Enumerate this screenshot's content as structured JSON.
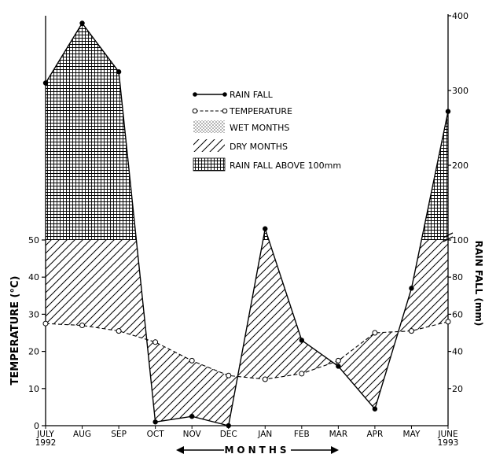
{
  "chart_data": {
    "type": "line",
    "categories": [
      "JULY\n1992",
      "AUG",
      "SEP",
      "OCT",
      "NOV",
      "DEC",
      "JAN",
      "FEB",
      "MAR",
      "APR",
      "MAY",
      "JUNE\n1993"
    ],
    "xlabel": "MONTHS",
    "ylabel_left": "TEMPERATURE (°C)",
    "ylabel_right": "RAIN FALL (mm)",
    "left_axis": {
      "ylim": [
        0,
        50
      ],
      "ticks": [
        0,
        10,
        20,
        30,
        40,
        50
      ]
    },
    "right_axis": {
      "lower_ylim": [
        0,
        100
      ],
      "lower_ticks": [
        {
          "value": 20,
          "label": "20"
        },
        {
          "value": 40,
          "label": "40"
        },
        {
          "value": 60,
          "label": "60"
        },
        {
          "value": 80,
          "label": "80"
        },
        {
          "value": 100,
          "label": "100"
        }
      ],
      "upper_ylim": [
        100,
        400
      ],
      "upper_ticks": [
        {
          "value": 200,
          "label": "200"
        },
        {
          "value": 300,
          "label": "300"
        },
        {
          "value": 400,
          "label": "400"
        }
      ],
      "axis_break_at": 100
    },
    "series": [
      {
        "name": "RAIN FALL",
        "axis": "right",
        "style": "solid",
        "marker": "filled-circle",
        "values": [
          310,
          390,
          325,
          2,
          5,
          0,
          115,
          46,
          32,
          9,
          74,
          272
        ]
      },
      {
        "name": "TEMPERATURE",
        "axis": "left",
        "style": "dashed",
        "marker": "open-circle",
        "values": [
          27.5,
          27,
          25.5,
          22.5,
          17.5,
          13.5,
          12.5,
          14,
          17.5,
          25,
          25.5,
          28
        ]
      }
    ],
    "legend": {
      "placement": "top-center",
      "items": [
        {
          "key": "rainfall",
          "label": "RAIN FALL"
        },
        {
          "key": "temperature",
          "label": "TEMPERATURE"
        },
        {
          "key": "wet",
          "label": "WET MONTHS"
        },
        {
          "key": "dry",
          "label": "DRY MONTHS"
        },
        {
          "key": "above",
          "label": "RAIN FALL ABOVE 100mm"
        }
      ]
    }
  }
}
